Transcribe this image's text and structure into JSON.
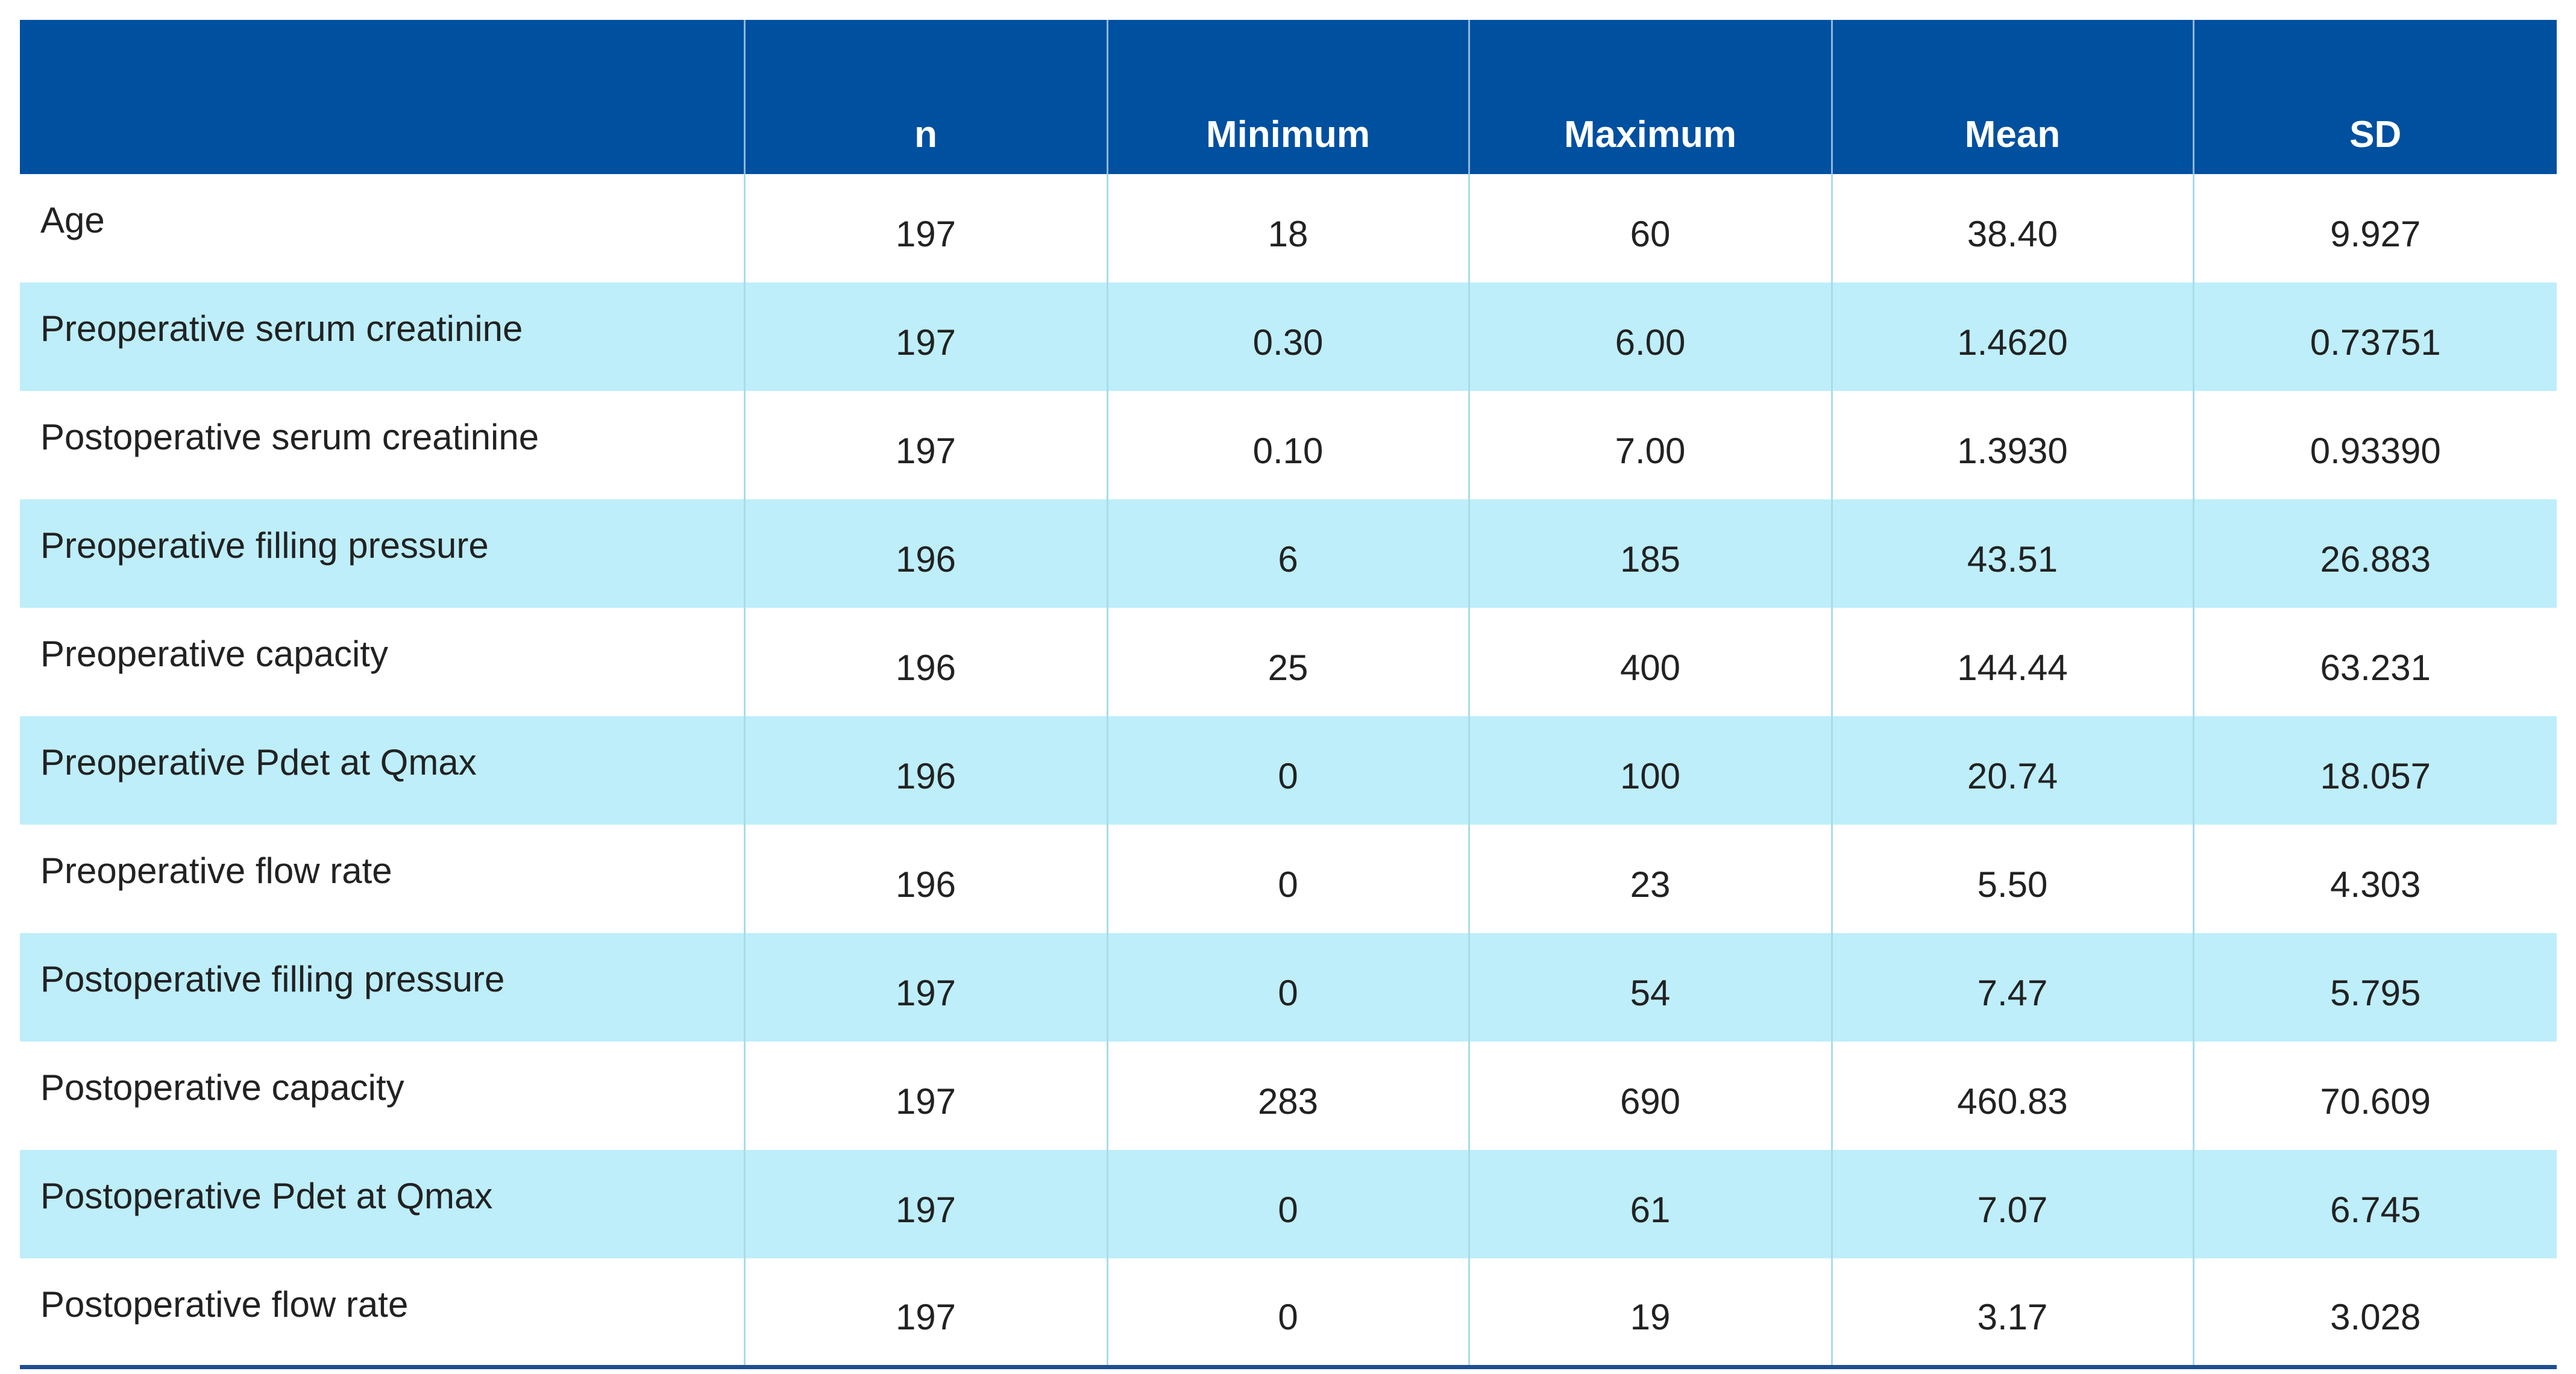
{
  "table": {
    "columns": [
      "n",
      "Minimum",
      "Maximum",
      "Mean",
      "SD"
    ],
    "rows": [
      [
        "Age",
        "197",
        "18",
        "60",
        "38.40",
        "9.927"
      ],
      [
        "Preoperative serum creatinine",
        "197",
        "0.30",
        "6.00",
        "1.4620",
        "0.73751"
      ],
      [
        "Postoperative serum creatinine",
        "197",
        "0.10",
        "7.00",
        "1.3930",
        "0.93390"
      ],
      [
        "Preoperative filling pressure",
        "196",
        "6",
        "185",
        "43.51",
        "26.883"
      ],
      [
        "Preoperative capacity",
        "196",
        "25",
        "400",
        "144.44",
        "63.231"
      ],
      [
        "Preoperative Pdet at Qmax",
        "196",
        "0",
        "100",
        "20.74",
        "18.057"
      ],
      [
        "Preoperative flow rate",
        "196",
        "0",
        "23",
        "5.50",
        "4.303"
      ],
      [
        "Postoperative filling pressure",
        "197",
        "0",
        "54",
        "7.47",
        "5.795"
      ],
      [
        "Postoperative capacity",
        "197",
        "283",
        "690",
        "460.83",
        "70.609"
      ],
      [
        "Postoperative Pdet at Qmax",
        "197",
        "0",
        "61",
        "7.07",
        "6.745"
      ],
      [
        "Postoperative flow rate",
        "197",
        "0",
        "19",
        "3.17",
        "3.028"
      ]
    ]
  }
}
